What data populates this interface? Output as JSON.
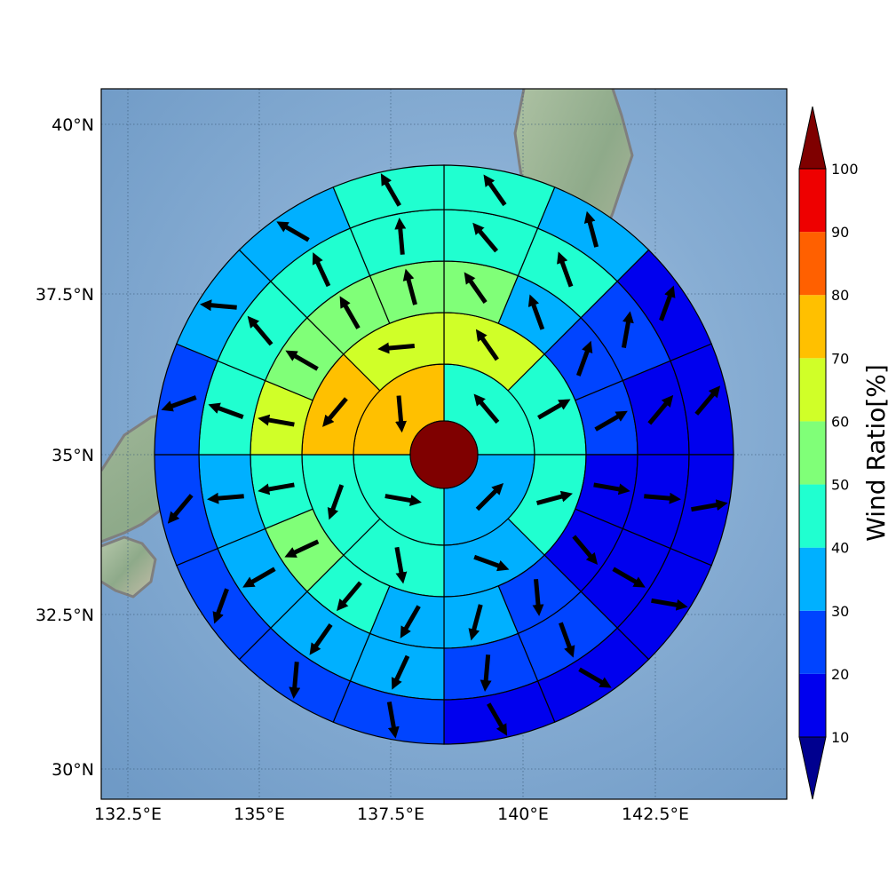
{
  "map": {
    "lon_ticks": [
      "132.5°E",
      "135°E",
      "137.5°E",
      "140°E",
      "142.5°E"
    ],
    "lat_ticks": [
      "40°N",
      "37.5°N",
      "35°N",
      "32.5°N",
      "30°N"
    ],
    "gridlines": true,
    "basemap": "shaded-relief",
    "coastline_color": "#7f7f7f"
  },
  "colorbar": {
    "title": "Wind Ratio[%]",
    "levels": [
      "10",
      "20",
      "30",
      "40",
      "50",
      "60",
      "70",
      "80",
      "90",
      "100"
    ],
    "colors": [
      "#00008f",
      "#0000ee",
      "#0044ff",
      "#00b0ff",
      "#20ffd0",
      "#80ff78",
      "#d0ff28",
      "#ffc000",
      "#ff6000",
      "#ee0000",
      "#7f0000"
    ],
    "extend": "both"
  },
  "chart_data": {
    "type": "polar-sector-heatmap",
    "center_value_range": "above 100",
    "rings": [
      {
        "sectors": 4,
        "start_deg": 0,
        "level_index": [
          4,
          3,
          4,
          7
        ]
      },
      {
        "sectors": 8,
        "start_deg": 0,
        "level_index": [
          6,
          4,
          4,
          3,
          4,
          4,
          7,
          6
        ]
      },
      {
        "sectors": 16,
        "start_deg": 0,
        "level_index": [
          5,
          3,
          2,
          2,
          1,
          1,
          2,
          3,
          3,
          4,
          5,
          4,
          6,
          5,
          5,
          5
        ]
      },
      {
        "sectors": 16,
        "start_deg": 0,
        "level_index": [
          4,
          4,
          2,
          1,
          1,
          1,
          2,
          2,
          3,
          3,
          3,
          3,
          4,
          4,
          4,
          4
        ]
      },
      {
        "sectors": 16,
        "start_deg": 0,
        "level_index": [
          4,
          3,
          1,
          1,
          1,
          1,
          1,
          1,
          2,
          2,
          2,
          2,
          2,
          3,
          3,
          4
        ]
      },
      {
        "sectors": 16,
        "start_deg": 0,
        "level_index": [
          4,
          3,
          1,
          1,
          1,
          1,
          1,
          2,
          2,
          2,
          2,
          2,
          2,
          3,
          3,
          4
        ]
      }
    ],
    "arrow_angles_deg": [
      [
        -40,
        45,
        100,
        175
      ],
      [
        -35,
        60,
        75,
        110,
        170,
        200,
        220,
        265
      ],
      [
        -35,
        -20,
        20,
        60,
        100,
        140,
        175,
        195,
        210,
        220,
        245,
        260,
        280,
        300,
        330,
        345
      ],
      [
        -40,
        -20,
        10,
        40,
        95,
        120,
        160,
        185,
        205,
        215,
        240,
        265,
        290,
        320,
        335,
        355
      ],
      [
        -35,
        -15,
        20,
        40,
        80,
        100,
        120,
        150,
        170,
        185,
        200,
        220,
        250,
        275,
        300,
        330
      ],
      [
        -45,
        -10,
        10,
        40,
        70,
        95,
        110,
        130,
        160,
        175,
        195,
        210,
        235,
        260,
        290,
        320
      ]
    ]
  }
}
